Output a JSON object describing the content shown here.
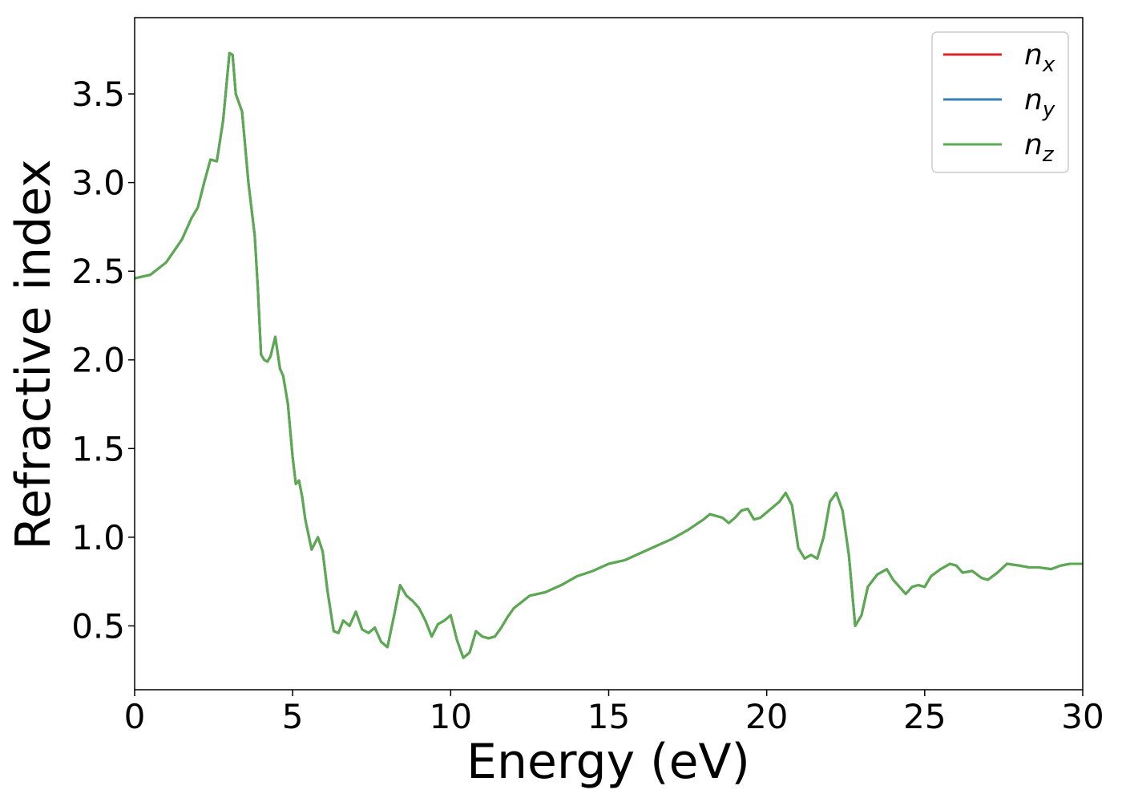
{
  "chart_data": {
    "type": "line",
    "title": "",
    "xlabel": "Energy (eV)",
    "ylabel": "Refractive index",
    "xlim": [
      0,
      30
    ],
    "ylim": [
      0.14,
      3.93
    ],
    "xticks": [
      0,
      5,
      10,
      15,
      20,
      25,
      30
    ],
    "xtick_labels": [
      "0",
      "5",
      "10",
      "15",
      "20",
      "25",
      "30"
    ],
    "yticks": [
      0.5,
      1.0,
      1.5,
      2.0,
      2.5,
      3.0,
      3.5
    ],
    "ytick_labels": [
      "0.5",
      "1.0",
      "1.5",
      "2.0",
      "2.5",
      "3.0",
      "3.5"
    ],
    "grid": false,
    "legend_position": "top-right",
    "x": [
      0,
      0.5,
      1.0,
      1.5,
      1.8,
      2.0,
      2.2,
      2.4,
      2.6,
      2.8,
      3.0,
      3.1,
      3.2,
      3.4,
      3.6,
      3.8,
      3.9,
      4.0,
      4.1,
      4.2,
      4.3,
      4.45,
      4.6,
      4.7,
      4.85,
      5.0,
      5.1,
      5.2,
      5.3,
      5.4,
      5.6,
      5.8,
      5.95,
      6.1,
      6.3,
      6.45,
      6.6,
      6.8,
      7.0,
      7.2,
      7.4,
      7.6,
      7.8,
      8.0,
      8.2,
      8.4,
      8.6,
      8.8,
      9.0,
      9.2,
      9.4,
      9.6,
      9.8,
      10.0,
      10.2,
      10.4,
      10.6,
      10.8,
      11.0,
      11.2,
      11.4,
      11.6,
      11.8,
      12.0,
      12.5,
      13.0,
      13.5,
      14.0,
      14.5,
      15.0,
      15.5,
      16.0,
      16.5,
      17.0,
      17.5,
      18.0,
      18.2,
      18.4,
      18.6,
      18.8,
      19.0,
      19.2,
      19.4,
      19.6,
      19.8,
      20.0,
      20.2,
      20.4,
      20.6,
      20.8,
      21.0,
      21.2,
      21.4,
      21.6,
      21.8,
      22.0,
      22.2,
      22.4,
      22.6,
      22.8,
      23.0,
      23.2,
      23.5,
      23.8,
      24.0,
      24.2,
      24.4,
      24.6,
      24.8,
      25.0,
      25.2,
      25.5,
      25.8,
      26.0,
      26.2,
      26.5,
      26.8,
      27.0,
      27.3,
      27.6,
      28.0,
      28.3,
      28.6,
      29.0,
      29.3,
      29.6,
      30.0
    ],
    "series": [
      {
        "name": "n_x",
        "color": "#d62728",
        "values": [
          2.46,
          2.48,
          2.55,
          2.68,
          2.8,
          2.86,
          3.0,
          3.13,
          3.12,
          3.35,
          3.73,
          3.72,
          3.5,
          3.4,
          3.0,
          2.7,
          2.4,
          2.03,
          2.0,
          1.99,
          2.02,
          2.13,
          1.95,
          1.91,
          1.75,
          1.45,
          1.3,
          1.32,
          1.23,
          1.1,
          0.93,
          1.0,
          0.92,
          0.7,
          0.47,
          0.46,
          0.53,
          0.5,
          0.58,
          0.48,
          0.46,
          0.49,
          0.41,
          0.38,
          0.55,
          0.73,
          0.67,
          0.64,
          0.6,
          0.53,
          0.44,
          0.51,
          0.53,
          0.56,
          0.42,
          0.32,
          0.35,
          0.47,
          0.44,
          0.43,
          0.44,
          0.49,
          0.55,
          0.6,
          0.67,
          0.69,
          0.73,
          0.78,
          0.81,
          0.85,
          0.87,
          0.91,
          0.95,
          0.99,
          1.04,
          1.1,
          1.13,
          1.12,
          1.11,
          1.08,
          1.11,
          1.15,
          1.16,
          1.1,
          1.11,
          1.14,
          1.17,
          1.2,
          1.25,
          1.18,
          0.94,
          0.88,
          0.9,
          0.88,
          1.0,
          1.2,
          1.25,
          1.15,
          0.9,
          0.5,
          0.56,
          0.72,
          0.79,
          0.82,
          0.76,
          0.72,
          0.68,
          0.72,
          0.73,
          0.72,
          0.78,
          0.82,
          0.85,
          0.84,
          0.8,
          0.81,
          0.77,
          0.76,
          0.8,
          0.85,
          0.84,
          0.83,
          0.83,
          0.82,
          0.84,
          0.85,
          0.85
        ]
      },
      {
        "name": "n_y",
        "color": "#3a7fb0",
        "values": [
          2.46,
          2.48,
          2.55,
          2.68,
          2.8,
          2.86,
          3.0,
          3.13,
          3.12,
          3.35,
          3.73,
          3.72,
          3.5,
          3.4,
          3.0,
          2.7,
          2.4,
          2.03,
          2.0,
          1.99,
          2.02,
          2.13,
          1.95,
          1.91,
          1.75,
          1.45,
          1.3,
          1.32,
          1.23,
          1.1,
          0.93,
          1.0,
          0.92,
          0.7,
          0.47,
          0.46,
          0.53,
          0.5,
          0.58,
          0.48,
          0.46,
          0.49,
          0.41,
          0.38,
          0.55,
          0.73,
          0.67,
          0.64,
          0.6,
          0.53,
          0.44,
          0.51,
          0.53,
          0.56,
          0.42,
          0.32,
          0.35,
          0.47,
          0.44,
          0.43,
          0.44,
          0.49,
          0.55,
          0.6,
          0.67,
          0.69,
          0.73,
          0.78,
          0.81,
          0.85,
          0.87,
          0.91,
          0.95,
          0.99,
          1.04,
          1.1,
          1.13,
          1.12,
          1.11,
          1.08,
          1.11,
          1.15,
          1.16,
          1.1,
          1.11,
          1.14,
          1.17,
          1.2,
          1.25,
          1.18,
          0.94,
          0.88,
          0.9,
          0.88,
          1.0,
          1.2,
          1.25,
          1.15,
          0.9,
          0.5,
          0.56,
          0.72,
          0.79,
          0.82,
          0.76,
          0.72,
          0.68,
          0.72,
          0.73,
          0.72,
          0.78,
          0.82,
          0.85,
          0.84,
          0.8,
          0.81,
          0.77,
          0.76,
          0.8,
          0.85,
          0.84,
          0.83,
          0.83,
          0.82,
          0.84,
          0.85,
          0.85
        ]
      },
      {
        "name": "n_z",
        "color": "#5aab4f",
        "values": [
          2.46,
          2.48,
          2.55,
          2.68,
          2.8,
          2.86,
          3.0,
          3.13,
          3.12,
          3.35,
          3.73,
          3.72,
          3.5,
          3.4,
          3.0,
          2.7,
          2.4,
          2.03,
          2.0,
          1.99,
          2.02,
          2.13,
          1.95,
          1.91,
          1.75,
          1.45,
          1.3,
          1.32,
          1.23,
          1.1,
          0.93,
          1.0,
          0.92,
          0.7,
          0.47,
          0.46,
          0.53,
          0.5,
          0.58,
          0.48,
          0.46,
          0.49,
          0.41,
          0.38,
          0.55,
          0.73,
          0.67,
          0.64,
          0.6,
          0.53,
          0.44,
          0.51,
          0.53,
          0.56,
          0.42,
          0.32,
          0.35,
          0.47,
          0.44,
          0.43,
          0.44,
          0.49,
          0.55,
          0.6,
          0.67,
          0.69,
          0.73,
          0.78,
          0.81,
          0.85,
          0.87,
          0.91,
          0.95,
          0.99,
          1.04,
          1.1,
          1.13,
          1.12,
          1.11,
          1.08,
          1.11,
          1.15,
          1.16,
          1.1,
          1.11,
          1.14,
          1.17,
          1.2,
          1.25,
          1.18,
          0.94,
          0.88,
          0.9,
          0.88,
          1.0,
          1.2,
          1.25,
          1.15,
          0.9,
          0.5,
          0.56,
          0.72,
          0.79,
          0.82,
          0.76,
          0.72,
          0.68,
          0.72,
          0.73,
          0.72,
          0.78,
          0.82,
          0.85,
          0.84,
          0.8,
          0.81,
          0.77,
          0.76,
          0.8,
          0.85,
          0.84,
          0.83,
          0.83,
          0.82,
          0.84,
          0.85,
          0.85
        ]
      }
    ],
    "legend": [
      {
        "base": "n",
        "sub": "x",
        "color": "#d62728"
      },
      {
        "base": "n",
        "sub": "y",
        "color": "#3a7fb0"
      },
      {
        "base": "n",
        "sub": "z",
        "color": "#5aab4f"
      }
    ]
  }
}
